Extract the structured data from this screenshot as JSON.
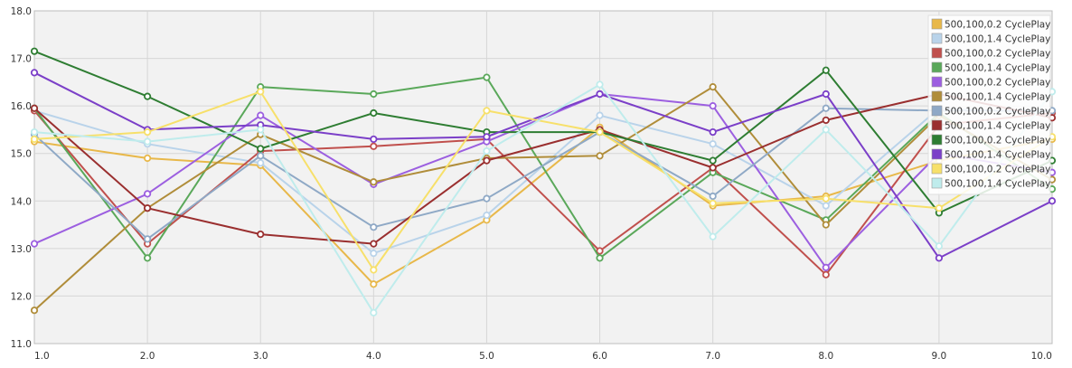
{
  "chart_data": {
    "type": "line",
    "title": "",
    "xlabel": "",
    "ylabel": "",
    "x": [
      1,
      2,
      3,
      4,
      5,
      6,
      7,
      8,
      9,
      10
    ],
    "x_tick_labels": [
      "1.0",
      "2.0",
      "3.0",
      "4.0",
      "5.0",
      "6.0",
      "7.0",
      "8.0",
      "9.0",
      "10.0"
    ],
    "xlim": [
      1,
      10
    ],
    "ylim": [
      11,
      18
    ],
    "y_ticks": [
      11,
      12,
      13,
      14,
      15,
      16,
      17,
      18
    ],
    "y_tick_labels": [
      "11.0",
      "12.0",
      "13.0",
      "14.0",
      "15.0",
      "16.0",
      "17.0",
      "18.0"
    ],
    "grid": true,
    "legend_position": "top-right",
    "series": [
      {
        "name": "500,100,0.2 CyclePlay",
        "color": "#e8b84a",
        "values": [
          15.25,
          14.9,
          14.75,
          12.25,
          13.6,
          15.55,
          13.9,
          14.1,
          14.85,
          15.3
        ]
      },
      {
        "name": "500,100,1.4 CyclePlay",
        "color": "#b9d3ea",
        "values": [
          15.9,
          15.2,
          14.8,
          12.9,
          13.7,
          15.8,
          15.2,
          13.9,
          15.95,
          15.85
        ]
      },
      {
        "name": "500,100,0.2 CyclePlay",
        "color": "#c0504d",
        "values": [
          15.9,
          13.1,
          15.05,
          15.15,
          15.3,
          12.95,
          14.7,
          12.45,
          15.6,
          15.85
        ]
      },
      {
        "name": "500,100,1.4 CyclePlay",
        "color": "#5aa85a",
        "values": [
          15.95,
          12.8,
          16.4,
          16.25,
          16.6,
          12.8,
          14.6,
          13.6,
          15.85,
          14.25
        ]
      },
      {
        "name": "500,100,0.2 CyclePlay",
        "color": "#9c5fe0",
        "values": [
          13.1,
          14.15,
          15.8,
          14.35,
          15.25,
          16.25,
          16.0,
          12.6,
          15.0,
          14.6
        ]
      },
      {
        "name": "500,100,1.4 CyclePlay",
        "color": "#b08d3a",
        "values": [
          11.7,
          13.85,
          15.4,
          14.4,
          14.9,
          14.95,
          16.4,
          13.5,
          15.8,
          14.45
        ]
      },
      {
        "name": "500,100,0.2 CyclePlay",
        "color": "#8fa9c6",
        "values": [
          15.4,
          13.2,
          14.95,
          13.45,
          14.05,
          15.45,
          14.1,
          15.95,
          15.9,
          15.9
        ]
      },
      {
        "name": "500,100,1.4 CyclePlay",
        "color": "#9a2f2f",
        "values": [
          15.95,
          13.85,
          13.3,
          13.1,
          14.85,
          15.5,
          14.7,
          15.7,
          16.25,
          15.75
        ]
      },
      {
        "name": "500,100,0.2 CyclePlay",
        "color": "#2e7d32",
        "values": [
          17.15,
          16.2,
          15.1,
          15.85,
          15.45,
          15.45,
          14.85,
          16.75,
          13.75,
          14.85
        ]
      },
      {
        "name": "500,100,1.4 CyclePlay",
        "color": "#7b3fc8",
        "values": [
          16.7,
          15.5,
          15.6,
          15.3,
          15.35,
          16.25,
          15.45,
          16.25,
          12.8,
          14.0
        ]
      },
      {
        "name": "500,100,0.2 CyclePlay",
        "color": "#f7e06a",
        "values": [
          15.3,
          15.45,
          16.3,
          12.55,
          15.9,
          15.45,
          13.95,
          14.05,
          13.85,
          15.35
        ]
      },
      {
        "name": "500,100,1.4 CyclePlay",
        "color": "#bfecec",
        "values": [
          15.45,
          15.25,
          15.5,
          11.65,
          15.05,
          16.45,
          13.25,
          15.5,
          13.05,
          16.3
        ]
      }
    ]
  }
}
